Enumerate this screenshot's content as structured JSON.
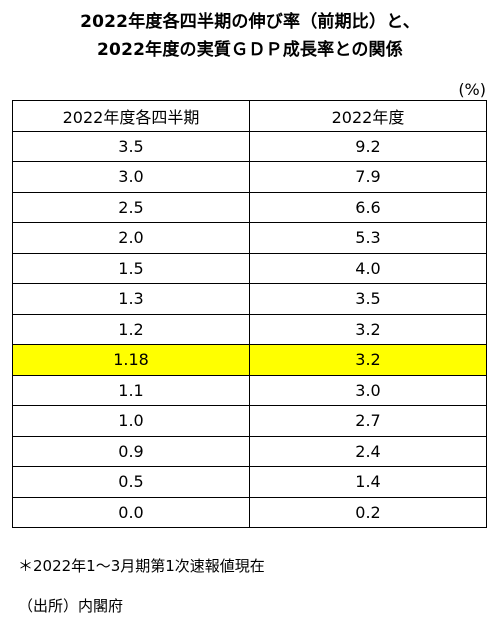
{
  "title": {
    "line1": "2022年度各四半期の伸び率（前期比）と、",
    "line2": "2022年度の実質ＧＤＰ成長率との関係"
  },
  "unit": "(%)",
  "table": {
    "headers": [
      "2022年度各四半期",
      "2022年度"
    ],
    "rows": [
      [
        "3.5",
        "9.2"
      ],
      [
        "3.0",
        "7.9"
      ],
      [
        "2.5",
        "6.6"
      ],
      [
        "2.0",
        "5.3"
      ],
      [
        "1.5",
        "4.0"
      ],
      [
        "1.3",
        "3.5"
      ],
      [
        "1.2",
        "3.2"
      ],
      [
        "1.18",
        "3.2"
      ],
      [
        "1.1",
        "3.0"
      ],
      [
        "1.0",
        "2.7"
      ],
      [
        "0.9",
        "2.4"
      ],
      [
        "0.5",
        "1.4"
      ],
      [
        "0.0",
        "0.2"
      ]
    ],
    "highlight_color": "#ffff00"
  },
  "note": "＊2022年1～3月期第1次速報値現在",
  "source": "（出所）内閣府"
}
